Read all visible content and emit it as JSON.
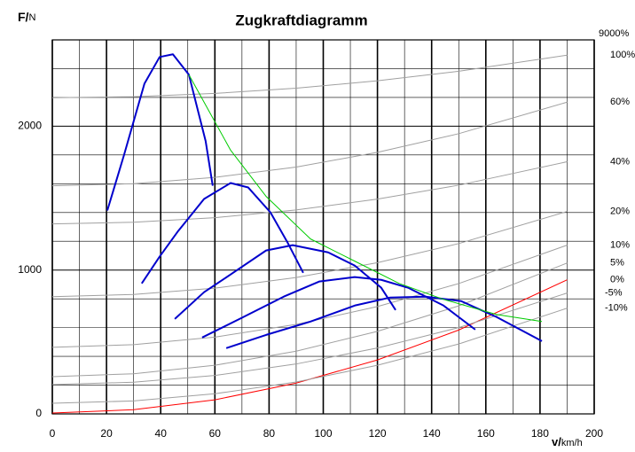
{
  "chart_data": {
    "type": "line",
    "title": "Zugkraftdiagramm",
    "ylabel": "F/",
    "ylabel_unit": "N",
    "xlabel": "v/",
    "xlabel_unit": "km/h",
    "xlim": [
      0,
      200
    ],
    "ylim": [
      0,
      2600
    ],
    "xticks": [
      0,
      20,
      40,
      60,
      80,
      100,
      120,
      140,
      160,
      180,
      200
    ],
    "xminor": [
      10,
      30,
      50,
      70,
      90,
      110,
      130,
      150,
      170,
      190
    ],
    "yticks": [
      0,
      1000,
      2000
    ],
    "yminor": [
      200,
      400,
      600,
      800,
      1200,
      1400,
      1600,
      1800,
      2200,
      2400
    ],
    "grid": true,
    "annotation": "9000%",
    "series": [
      {
        "color": "#0000cc",
        "x": [
          20.3,
          26.5,
          34,
          39.6,
          44.5,
          50.4,
          56.6,
          59.2
        ],
        "values": [
          1414,
          1802,
          2296,
          2481,
          2500,
          2358,
          1895,
          1586
        ]
      },
      {
        "color": "#0000cc",
        "x": [
          33,
          39.6,
          46.2,
          56,
          65.8,
          72.3,
          80.5,
          87,
          92.6
        ],
        "values": [
          907,
          1093,
          1265,
          1494,
          1605,
          1574,
          1401,
          1185,
          981
        ]
      },
      {
        "color": "#0000cc",
        "x": [
          45.2,
          56,
          65.8,
          78.9,
          88.7,
          101.8,
          111.6,
          121.4,
          126.7
        ],
        "values": [
          660,
          846,
          969,
          1136,
          1173,
          1123,
          1031,
          877,
          722
        ]
      },
      {
        "color": "#0000cc",
        "x": [
          55.3,
          69.1,
          85.4,
          98.5,
          111.6,
          121.4,
          131.3,
          144.4,
          156.1
        ],
        "values": [
          531,
          660,
          815,
          920,
          951,
          932,
          877,
          753,
          586
        ]
      },
      {
        "color": "#0000cc",
        "x": [
          64.2,
          78.9,
          95.3,
          111.6,
          124.7,
          137.8,
          150.9,
          164,
          180.7
        ],
        "values": [
          457,
          549,
          642,
          753,
          809,
          815,
          784,
          673,
          506
        ]
      },
      {
        "color": "#00cc00",
        "x": [
          50.4,
          65.8,
          78.9,
          95.3,
          111.6,
          128,
          144.4,
          164,
          180.7
        ],
        "values": [
          2358,
          1833,
          1512,
          1216,
          1062,
          907,
          796,
          691,
          642
        ]
      }
    ],
    "resistance_x": [
      0,
      30,
      60,
      90,
      120,
      150,
      190
    ],
    "resistance_curves": [
      {
        "name": "100%",
        "color": "#a0a0a0",
        "values": [
          2198,
          2205,
          2228,
          2264,
          2316,
          2382,
          2494
        ]
      },
      {
        "name": "60%",
        "color": "#a0a0a0",
        "values": [
          1586,
          1600,
          1644,
          1716,
          1818,
          1948,
          2167
        ]
      },
      {
        "name": "40%",
        "color": "#a0a0a0",
        "values": [
          1321,
          1332,
          1364,
          1418,
          1493,
          1590,
          1753
        ]
      },
      {
        "name": "20%",
        "color": "#a0a0a0",
        "values": [
          815,
          830,
          874,
          948,
          1051,
          1184,
          1407
        ]
      },
      {
        "name": "10%",
        "color": "#a0a0a0",
        "values": [
          463,
          481,
          534,
          622,
          746,
          906,
          1173
        ]
      },
      {
        "name": "5%",
        "color": "#a0a0a0",
        "values": [
          259,
          279,
          338,
          436,
          574,
          751,
          1049
        ]
      },
      {
        "name": "0%",
        "color": "#ff0000",
        "values": [
          6,
          29,
          98,
          214,
          375,
          583,
          932
        ]
      },
      {
        "name": "-5%",
        "color": "#a0a0a0",
        "values": [
          204,
          220,
          267,
          347,
          458,
          600,
          840
        ]
      },
      {
        "name": "-10%",
        "color": "#a0a0a0",
        "values": [
          74,
          90,
          140,
          222,
          338,
          486,
          735
        ]
      }
    ]
  }
}
